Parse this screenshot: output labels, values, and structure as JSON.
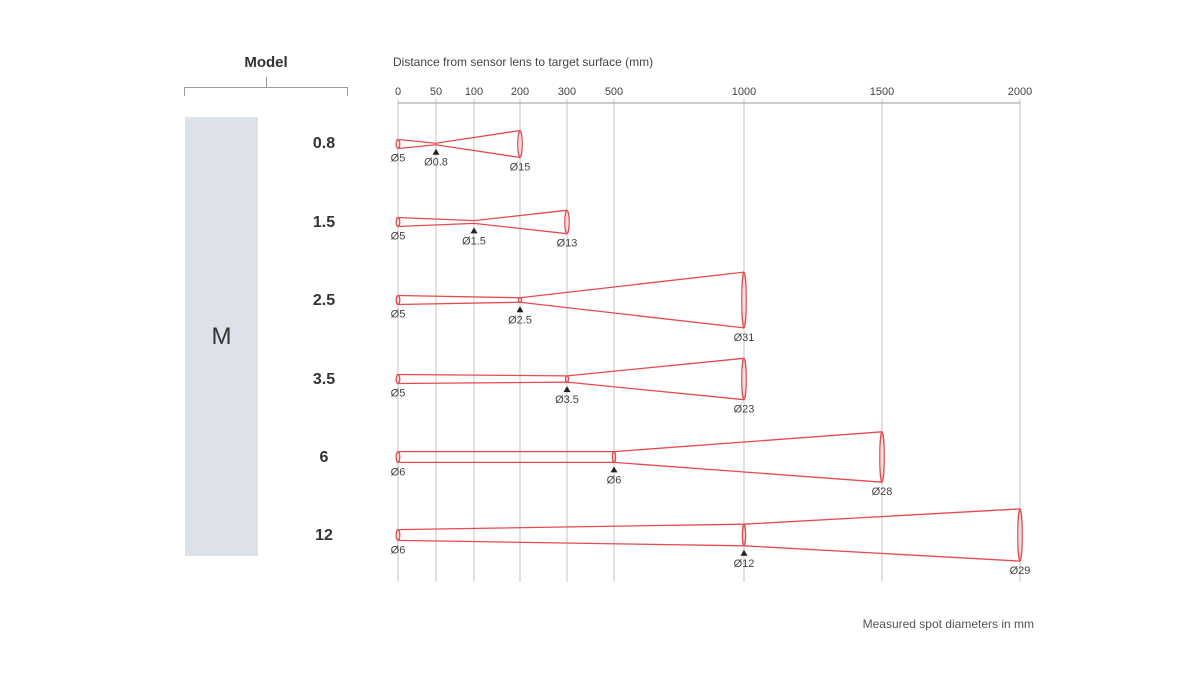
{
  "model_header": "Model",
  "series_label": "M",
  "axis": {
    "title": "Distance from sensor lens to target surface (mm)",
    "ticks": [
      0,
      50,
      100,
      200,
      300,
      500,
      1000,
      1500,
      2000
    ]
  },
  "footnote": "Measured spot diameters in mm",
  "colors": {
    "beam": "#e8494f",
    "grid": "#b5b5b5",
    "series_box": "#dde1ea",
    "text": "#333333"
  },
  "rows": [
    {
      "model": "0.8",
      "start_label": "Ø5",
      "focus_label": "Ø0.8",
      "end_label": "Ø15",
      "focus_distance": 50,
      "end_distance": 200,
      "start_diameter": 5,
      "focus_diameter": 0.8,
      "end_diameter": 15
    },
    {
      "model": "1.5",
      "start_label": "Ø5",
      "focus_label": "Ø1.5",
      "end_label": "Ø13",
      "focus_distance": 100,
      "end_distance": 300,
      "start_diameter": 5,
      "focus_diameter": 1.5,
      "end_diameter": 13
    },
    {
      "model": "2.5",
      "start_label": "Ø5",
      "focus_label": "Ø2.5",
      "end_label": "Ø31",
      "focus_distance": 200,
      "end_distance": 1000,
      "start_diameter": 5,
      "focus_diameter": 2.5,
      "end_diameter": 31
    },
    {
      "model": "3.5",
      "start_label": "Ø5",
      "focus_label": "Ø3.5",
      "end_label": "Ø23",
      "focus_distance": 300,
      "end_distance": 1000,
      "start_diameter": 5,
      "focus_diameter": 3.5,
      "end_diameter": 23
    },
    {
      "model": "6",
      "start_label": "Ø6",
      "focus_label": "Ø6",
      "end_label": "Ø28",
      "focus_distance": 500,
      "end_distance": 1500,
      "start_diameter": 6,
      "focus_diameter": 6,
      "end_diameter": 28
    },
    {
      "model": "12",
      "start_label": "Ø6",
      "focus_label": "Ø12",
      "end_label": "Ø29",
      "focus_distance": 1000,
      "end_distance": 2000,
      "start_diameter": 6,
      "focus_diameter": 12,
      "end_diameter": 29
    }
  ]
}
